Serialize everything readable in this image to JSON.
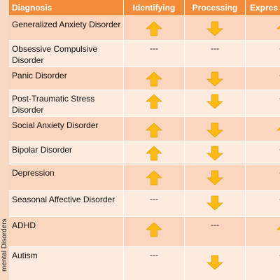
{
  "colors": {
    "header_bg": "#f28c3a",
    "row_dark": "#fbd5bd",
    "row_light": "#fdebe0",
    "arrow_fill": "#fdb913",
    "arrow_stroke": "#e0a000"
  },
  "side_label": "mental Disorders",
  "headers": {
    "diagnosis": "Diagnosis",
    "identifying": "Identifying",
    "processing": "Processing",
    "expressing": "Expres"
  },
  "rows": [
    {
      "diagnosis": "Generalized Anxiety Disorder",
      "identifying": "up",
      "processing": "down",
      "expressing": "up",
      "identifying_text": "",
      "processing_text": "",
      "expressing_text": ""
    },
    {
      "diagnosis": "Obsessive Compulsive Disorder",
      "identifying": "none",
      "processing": "none",
      "expressing": "none",
      "identifying_text": "---",
      "processing_text": "---",
      "expressing_text": "--"
    },
    {
      "diagnosis": "Panic Disorder",
      "identifying": "up",
      "processing": "down",
      "expressing": "none",
      "identifying_text": "",
      "processing_text": "",
      "expressing_text": "--"
    },
    {
      "diagnosis": "Post-Traumatic Stress Disorder",
      "identifying": "up",
      "processing": "down",
      "expressing": "none",
      "identifying_text": "",
      "processing_text": "",
      "expressing_text": "--"
    },
    {
      "diagnosis": "Social Anxiety Disorder",
      "identifying": "up",
      "processing": "down",
      "expressing": "up",
      "identifying_text": "",
      "processing_text": "",
      "expressing_text": ""
    },
    {
      "diagnosis": "Bipolar Disorder",
      "identifying": "up",
      "processing": "down",
      "expressing": "none",
      "identifying_text": "",
      "processing_text": "",
      "expressing_text": "--"
    },
    {
      "diagnosis": "Depression",
      "identifying": "up",
      "processing": "down",
      "expressing": "none",
      "identifying_text": "",
      "processing_text": "",
      "expressing_text": "--"
    },
    {
      "diagnosis": "Seasonal Affective Disorder",
      "identifying": "none",
      "processing": "down",
      "expressing": "none",
      "identifying_text": "---",
      "processing_text": "",
      "expressing_text": "--"
    },
    {
      "diagnosis": "ADHD",
      "identifying": "up",
      "processing": "none",
      "expressing": "up",
      "identifying_text": "",
      "processing_text": "---",
      "expressing_text": ""
    },
    {
      "diagnosis": "Autism",
      "identifying": "none",
      "processing": "down",
      "expressing": "none",
      "identifying_text": "---",
      "processing_text": "",
      "expressing_text": "--"
    }
  ]
}
